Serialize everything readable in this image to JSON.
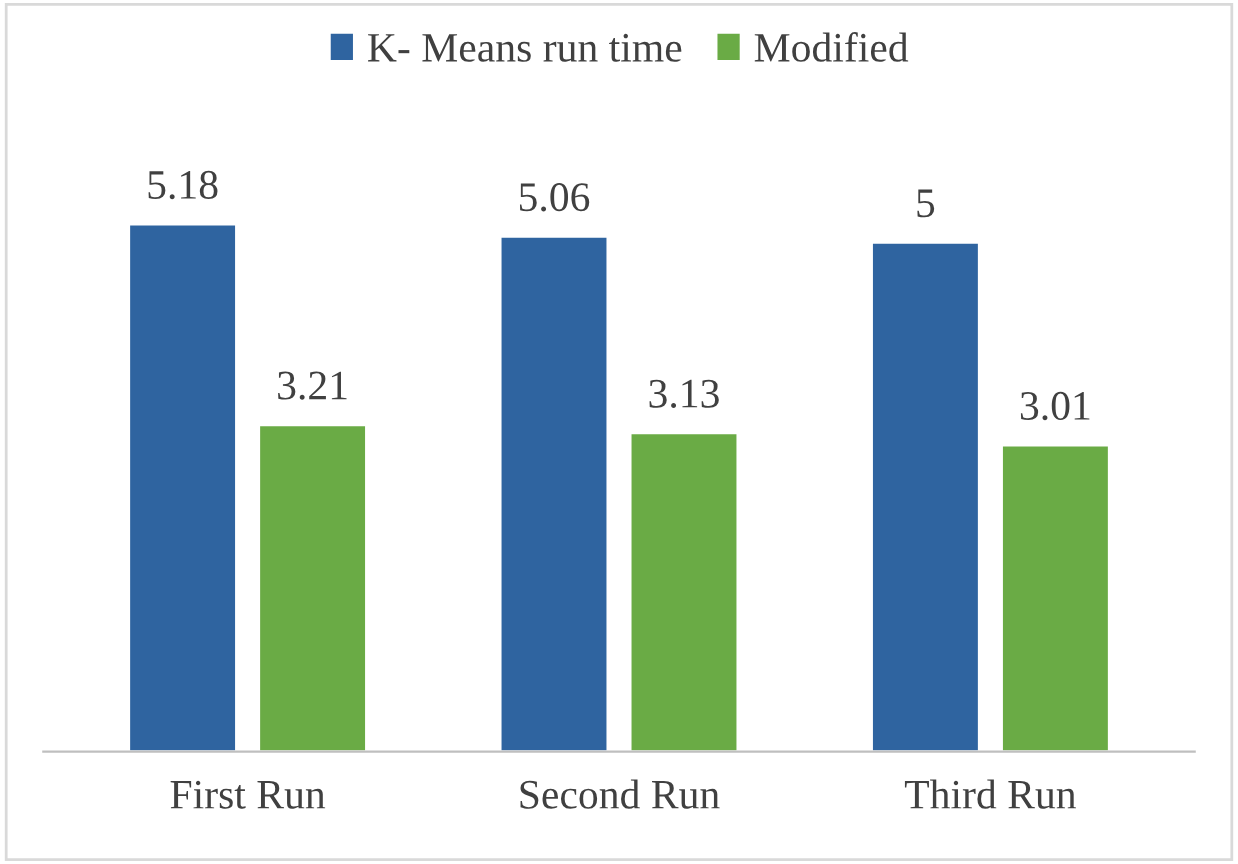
{
  "chart_data": {
    "type": "bar",
    "categories": [
      "First Run",
      "Second Run",
      "Third Run"
    ],
    "series": [
      {
        "name": "K- Means run time",
        "color": "#2f64a0",
        "values": [
          5.18,
          5.06,
          5
        ]
      },
      {
        "name": "Modified",
        "color": "#6aab45",
        "values": [
          3.21,
          3.13,
          3.01
        ]
      }
    ],
    "data_labels": true,
    "legend": "top",
    "grid": false
  }
}
